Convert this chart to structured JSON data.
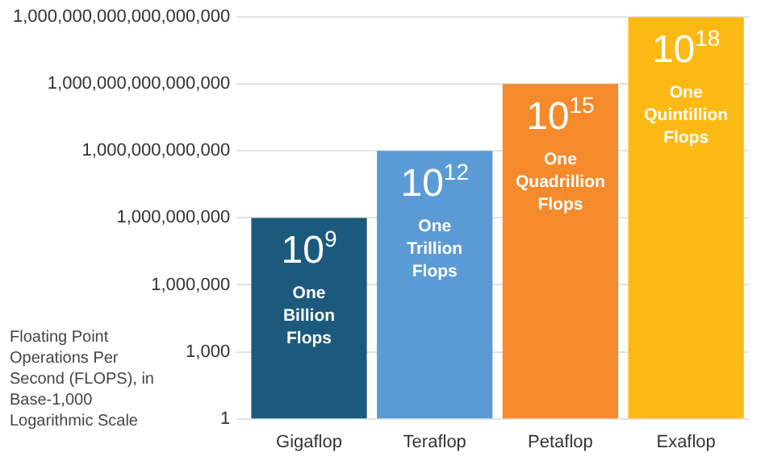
{
  "chart_data": {
    "type": "bar",
    "ylabel": "Floating Point Operations Per Second (FLOPS), in Base-1,000 Logarithmic Scale",
    "categories": [
      "Gigaflop",
      "Teraflop",
      "Petaflop",
      "Exaflop"
    ],
    "values": [
      1000000000.0,
      1000000000000.0,
      1000000000000000.0,
      1e+18
    ],
    "colors": [
      "#1b5a7c",
      "#5b9bd5",
      "#f58a2b",
      "#fdb913"
    ],
    "value_labels": [
      "10$^{9}$",
      "10$^{12}$",
      "10$^{15}$",
      "10$^{18}$"
    ],
    "annotations": [
      "One Billion Flops",
      "One Trillion Flops",
      "One Quadrillion Flops",
      "One Quintillion Flops"
    ],
    "log": true,
    "ylim": [
      1,
      1e+18
    ],
    "yticks": [
      1,
      {
        "value": 1000,
        "label": "1,000"
      },
      {
        "value": 1000000.0,
        "label": "1,000,000"
      },
      {
        "value": 1000000000.0,
        "label": "1,000,000,000"
      },
      {
        "value": 1000000000000.0,
        "label": "1,000,000,000,000"
      },
      {
        "value": 1000000000000000.0,
        "label": "1,000,000,000,000,000"
      },
      {
        "value": 1e+18,
        "label": "1,000,000,000,000,000,000"
      }
    ],
    "grid": "y",
    "legend": false
  }
}
